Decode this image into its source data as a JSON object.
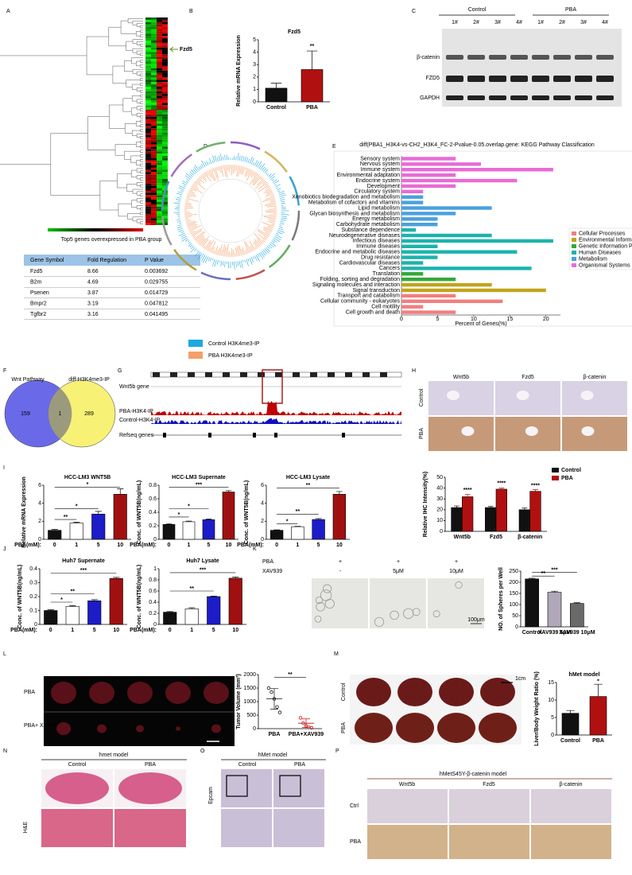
{
  "panels": {
    "labels": [
      "A",
      "B",
      "C",
      "D",
      "E",
      "F",
      "G",
      "H",
      "I",
      "J",
      "K",
      "L",
      "M",
      "N",
      "O",
      "P"
    ],
    "a": {
      "marker": "Fzd5",
      "table": {
        "title": "Top5 genes overexpressed in PBA group",
        "header": [
          "Gene Symbol",
          "Fold Regulation",
          "P Value"
        ],
        "rows": [
          [
            "Fzd5",
            8.66,
            0.003692
          ],
          [
            "B2m",
            4.69,
            0.029755
          ],
          [
            "Psenen",
            3.87,
            0.014729
          ],
          [
            "Bmpr2",
            3.19,
            0.047812
          ],
          [
            "Tgfbr2",
            3.16,
            0.041495
          ]
        ]
      }
    },
    "c": {
      "groups": [
        "Control",
        "PBA"
      ],
      "lanes": [
        "1#",
        "2#",
        "3#",
        "4#",
        "1#",
        "2#",
        "3#",
        "4#"
      ],
      "rows": [
        "β-catenin",
        "FZD5",
        "GAPDH"
      ]
    },
    "d": {
      "legend": [
        "Control  H3K4me3-IP",
        "PBA   H3K4me3-IP"
      ]
    },
    "f": {
      "sets": [
        "Wnt Pathway",
        "diff-H3K4me3-IP"
      ],
      "counts": [
        159,
        1,
        289
      ]
    },
    "g": {
      "tracks": [
        "Wnt5b gene",
        "PBA-H3K4-IP",
        "Control-H3K4-IP",
        "Refseq genes"
      ]
    },
    "h": {
      "columns": [
        "Wnt5b",
        "Fzd5",
        "β-catenin"
      ],
      "rows": [
        "Control",
        "PBA"
      ]
    },
    "k": {
      "rows": [
        "PBA",
        "XAV939"
      ],
      "pba": [
        "+",
        "+",
        "+"
      ],
      "xav": [
        "-",
        "5μM",
        "10μM"
      ],
      "scale": "100μm"
    },
    "l": {
      "rows": [
        "PBA",
        "PBA+ XAV939"
      ],
      "scale": "1cm"
    },
    "m": {
      "rows": [
        "Control",
        "PBA"
      ],
      "scale": "1cm"
    },
    "n": {
      "title": "hmet model",
      "columns": [
        "Control",
        "PBA"
      ],
      "stain": "H&E"
    },
    "o": {
      "title": "hMet model",
      "columns": [
        "Control",
        "PBA"
      ],
      "stain": "Epcam"
    },
    "p": {
      "title": "hMetS45Y-β-catenin model",
      "columns": [
        "Wnt5b",
        "Fzd5",
        "β-catenin"
      ],
      "rows": [
        "Ctrl",
        "PBA"
      ]
    }
  },
  "chart_data": [
    {
      "type": "bar",
      "title": "Fzd5",
      "ylabel": "Relative mRNA Expression",
      "categories": [
        "Control",
        "PBA"
      ],
      "values": [
        1.1,
        2.6
      ],
      "errors": [
        0.4,
        1.5
      ],
      "colors": [
        "#111111",
        "#b01010"
      ],
      "ylim": [
        0,
        5
      ],
      "yticks": [
        0,
        1,
        2,
        3,
        4,
        5
      ],
      "annotations": [
        "**"
      ]
    },
    {
      "type": "hbar",
      "title": "diff(PBA1_H3K4-vs-CH2_H3K4_FC-2-Pvalue-0.05.overlap.gene: KEGG Pathway Classification",
      "xlabel": "Percent of Genes(%)",
      "xlim": [
        0,
        22
      ],
      "xticks": [
        0,
        5,
        10,
        15,
        20
      ],
      "categories": [
        "Sensory system",
        "Nervous system",
        "Immune system",
        "Environmental adaptation",
        "Endocrine system",
        "Development",
        "Circulatory system",
        "Xenobiotics biodegradation and metabolism",
        "Metabolism of cofactors and vitamins",
        "Lipid metabolism",
        "Glycan biosynthesis and metabolism",
        "Energy metabolism",
        "Carbohydrate metabolism",
        "Substance dependence",
        "Neurodegenerative diseases",
        "Infectious diseases",
        "Immune diseases",
        "Endocrine and metabolic diseases",
        "Drug resistance",
        "Cardiovascular diseases",
        "Cancers",
        "Translation",
        "Folding, sorting and degradation",
        "Signaling molecules and interaction",
        "Signal transduction",
        "Transport and catabolism",
        "Cellular community - eukaryotes",
        "Cell motility",
        "Cell growth and death"
      ],
      "series": [
        {
          "name": "Cellular Processes",
          "color": "#f07f7f",
          "values": [
            null,
            null,
            null,
            null,
            null,
            null,
            null,
            null,
            null,
            null,
            null,
            null,
            null,
            null,
            null,
            null,
            null,
            null,
            null,
            null,
            null,
            null,
            null,
            null,
            null,
            7.5,
            14,
            3,
            7.5
          ]
        },
        {
          "name": "Environmental Information Processing",
          "color": "#c2a41c",
          "values": [
            null,
            null,
            null,
            null,
            null,
            null,
            null,
            null,
            null,
            null,
            null,
            null,
            null,
            null,
            null,
            null,
            null,
            null,
            null,
            null,
            null,
            null,
            null,
            12.5,
            20,
            null,
            null,
            null,
            null
          ]
        },
        {
          "name": "Genetic Information Processing",
          "color": "#35a838",
          "values": [
            null,
            null,
            null,
            null,
            null,
            null,
            null,
            null,
            null,
            null,
            null,
            null,
            null,
            null,
            null,
            null,
            null,
            null,
            null,
            null,
            null,
            3,
            7.5,
            null,
            null,
            null,
            null,
            null,
            null
          ]
        },
        {
          "name": "Human Diseases",
          "color": "#1cb3ad",
          "values": [
            null,
            null,
            null,
            null,
            null,
            null,
            null,
            null,
            null,
            null,
            null,
            null,
            null,
            2,
            12.5,
            21,
            5,
            16,
            5,
            3,
            18,
            null,
            null,
            null,
            null,
            null,
            null,
            null,
            null
          ]
        },
        {
          "name": "Metabolism",
          "color": "#4aa0dd",
          "values": [
            null,
            null,
            null,
            null,
            null,
            null,
            null,
            3,
            3,
            12.5,
            7.5,
            5,
            5,
            null,
            null,
            null,
            null,
            null,
            null,
            null,
            null,
            null,
            null,
            null,
            null,
            null,
            null,
            null,
            null
          ]
        },
        {
          "name": "Organismal Systems",
          "color": "#e86bd6",
          "values": [
            7.5,
            11,
            21,
            7.5,
            16,
            7.5,
            3,
            null,
            null,
            null,
            null,
            null,
            null,
            null,
            null,
            null,
            null,
            null,
            null,
            null,
            null,
            null,
            null,
            null,
            null,
            null,
            null,
            null,
            null
          ]
        }
      ]
    },
    {
      "type": "bar",
      "ylabel": "Relative IHC Intensity(%)",
      "categories": [
        "Wnt5b",
        "Fzd5",
        "β-catenin"
      ],
      "legend": true,
      "series": [
        {
          "name": "Control",
          "color": "#111111",
          "values": [
            22,
            22,
            20
          ],
          "errors": [
            1.5,
            1,
            1.5
          ]
        },
        {
          "name": "PBA",
          "color": "#b01010",
          "values": [
            32,
            39,
            37
          ],
          "errors": [
            2,
            1,
            1.5
          ]
        }
      ],
      "ylim": [
        0,
        50
      ],
      "yticks": [
        0,
        10,
        20,
        30,
        40,
        50
      ],
      "annotations": [
        "****",
        "****",
        "****"
      ]
    },
    {
      "type": "bar",
      "title": "HCC-LM3 WNT5B",
      "ylabel": "Relative mRNA Expression",
      "xlabel": "PBA(mM):",
      "categories": [
        "0",
        "1",
        "5",
        "10"
      ],
      "values": [
        1,
        1.8,
        2.8,
        5
      ],
      "errors": [
        0.1,
        0.1,
        0.3,
        0.6
      ],
      "colors": [
        "#111111",
        "#ffffff",
        "#1c1cc8",
        "#a01010"
      ],
      "ylim": [
        0,
        6
      ],
      "yticks": [
        0,
        2,
        4,
        6
      ],
      "annotations": [
        "**",
        "*",
        "*"
      ]
    },
    {
      "type": "bar",
      "title": "HCC-LM3 Supernate",
      "ylabel": "Conc. of WNT5B(ng/mL)",
      "xlabel": "PBA(mM):",
      "categories": [
        "0",
        "1",
        "5",
        "10"
      ],
      "values": [
        0.22,
        0.26,
        0.29,
        0.7
      ],
      "errors": [
        0.01,
        0.01,
        0.01,
        0.02
      ],
      "colors": [
        "#111111",
        "#ffffff",
        "#1c1cc8",
        "#a01010"
      ],
      "ylim": [
        0,
        0.8
      ],
      "yticks": [
        0,
        0.2,
        0.4,
        0.6,
        0.8
      ],
      "annotations": [
        "*",
        "*",
        "***"
      ]
    },
    {
      "type": "bar",
      "title": "HCC-LM3 Lysate",
      "ylabel": "Conc. of WNT5B(ng/mL)",
      "xlabel": "PBA(mM):",
      "categories": [
        "0",
        "1",
        "5",
        "10"
      ],
      "values": [
        1,
        1.4,
        2.2,
        5
      ],
      "errors": [
        0.05,
        0.05,
        0.1,
        0.3
      ],
      "colors": [
        "#111111",
        "#ffffff",
        "#1c1cc8",
        "#a01010"
      ],
      "ylim": [
        0,
        6
      ],
      "yticks": [
        0,
        2,
        4,
        6
      ],
      "annotations": [
        "*",
        "**",
        "**"
      ]
    },
    {
      "type": "bar",
      "title": "Huh7 Supernate",
      "ylabel": "Conc. of WNT5B(ng/mL)",
      "xlabel": "PBA(mM):",
      "categories": [
        "0",
        "1",
        "5",
        "10"
      ],
      "values": [
        0.1,
        0.13,
        0.17,
        0.33
      ],
      "errors": [
        0.005,
        0.005,
        0.008,
        0.008
      ],
      "colors": [
        "#111111",
        "#ffffff",
        "#1c1cc8",
        "#a01010"
      ],
      "ylim": [
        0,
        0.4
      ],
      "yticks": [
        0,
        0.1,
        0.2,
        0.3,
        0.4
      ],
      "annotations": [
        "*",
        "**",
        "***"
      ]
    },
    {
      "type": "bar",
      "title": "Huh7 Lysate",
      "ylabel": "Conc. of WNT5B(ng/mL)",
      "xlabel": "PBA(mM):",
      "categories": [
        "0",
        "1",
        "5",
        "10"
      ],
      "values": [
        0.22,
        0.28,
        0.5,
        0.83
      ],
      "errors": [
        0.01,
        0.02,
        0.01,
        0.02
      ],
      "colors": [
        "#111111",
        "#ffffff",
        "#1c1cc8",
        "#a01010"
      ],
      "ylim": [
        0,
        1
      ],
      "yticks": [
        0,
        0.2,
        0.4,
        0.6,
        0.8,
        1
      ],
      "annotations": [
        "**",
        "***"
      ]
    },
    {
      "type": "bar",
      "ylabel": "NO. of Spheres per Well",
      "categories": [
        "Control",
        "XAV939 5μM",
        "XAV939 10μM"
      ],
      "values": [
        215,
        155,
        105
      ],
      "errors": [
        3,
        5,
        3
      ],
      "colors": [
        "#111111",
        "#b0a8b9",
        "#6a6a6a"
      ],
      "ylim": [
        0,
        250
      ],
      "yticks": [
        0,
        50,
        100,
        150,
        200,
        250
      ],
      "annotations": [
        "**",
        "***"
      ]
    },
    {
      "type": "scatter",
      "ylabel": "Tumor Volume (mm³)",
      "categories": [
        "PBA",
        "PBA+XAV939"
      ],
      "colors": [
        "#111111",
        "#c01010"
      ],
      "points": [
        [
          1500,
          1350,
          1100,
          800,
          600
        ],
        [
          400,
          200,
          100,
          50,
          30
        ]
      ],
      "means": [
        1100,
        200
      ],
      "sd": [
        380,
        160
      ],
      "ylim": [
        0,
        2000
      ],
      "yticks": [
        0,
        500,
        1000,
        1500,
        2000
      ],
      "annotations": [
        "**"
      ]
    },
    {
      "type": "bar",
      "title": "hMet model",
      "ylabel": "Liver/Body Weight Ratio (%)",
      "categories": [
        "Control",
        "PBA"
      ],
      "values": [
        6.2,
        11
      ],
      "errors": [
        0.8,
        3.5
      ],
      "colors": [
        "#111111",
        "#b01010"
      ],
      "ylim": [
        0,
        15
      ],
      "yticks": [
        0,
        5,
        10,
        15
      ],
      "annotations": [
        "*"
      ]
    }
  ]
}
